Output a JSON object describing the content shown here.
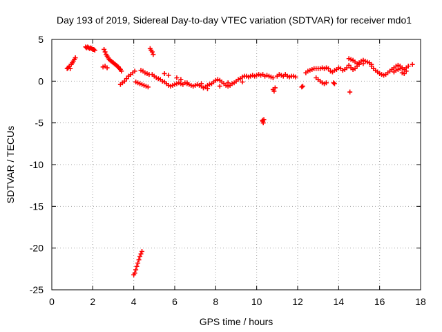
{
  "chart_data": {
    "type": "scatter",
    "title": "Day 193 of 2019, Sidereal Day-to-day VTEC variation (SDTVAR) for receiver mdo1",
    "xlabel": "GPS time / hours",
    "ylabel": "SDTVAR / TECUs",
    "xlim": [
      0,
      18
    ],
    "ylim": [
      -25,
      5
    ],
    "xticks": [
      0,
      2,
      4,
      6,
      8,
      10,
      12,
      14,
      16,
      18
    ],
    "yticks": [
      5,
      0,
      -5,
      -10,
      -15,
      -20,
      -25
    ],
    "grid": true,
    "marker": "+",
    "color": "#ff0000",
    "series": [
      {
        "name": "SDTVAR",
        "points": [
          [
            0.75,
            1.5
          ],
          [
            0.8,
            1.6
          ],
          [
            0.85,
            1.8
          ],
          [
            0.9,
            1.5
          ],
          [
            0.95,
            2.0
          ],
          [
            1.0,
            2.2
          ],
          [
            1.05,
            2.4
          ],
          [
            1.1,
            2.6
          ],
          [
            1.15,
            2.8
          ],
          [
            1.65,
            4.1
          ],
          [
            1.7,
            4.0
          ],
          [
            1.75,
            4.1
          ],
          [
            1.8,
            4.0
          ],
          [
            1.85,
            3.9
          ],
          [
            1.9,
            4.0
          ],
          [
            1.95,
            3.9
          ],
          [
            2.0,
            3.8
          ],
          [
            2.05,
            3.8
          ],
          [
            2.1,
            3.7
          ],
          [
            2.55,
            3.8
          ],
          [
            2.6,
            3.5
          ],
          [
            2.65,
            3.2
          ],
          [
            2.7,
            3.0
          ],
          [
            2.75,
            2.8
          ],
          [
            2.8,
            2.6
          ],
          [
            2.85,
            2.5
          ],
          [
            2.9,
            2.4
          ],
          [
            2.95,
            2.3
          ],
          [
            3.0,
            2.2
          ],
          [
            3.05,
            2.1
          ],
          [
            3.1,
            2.0
          ],
          [
            3.15,
            1.9
          ],
          [
            3.2,
            1.8
          ],
          [
            3.25,
            1.7
          ],
          [
            3.3,
            1.5
          ],
          [
            3.35,
            1.4
          ],
          [
            3.4,
            1.2
          ],
          [
            2.5,
            1.7
          ],
          [
            2.6,
            1.8
          ],
          [
            2.7,
            1.6
          ],
          [
            3.35,
            -0.4
          ],
          [
            3.45,
            -0.2
          ],
          [
            3.55,
            0.0
          ],
          [
            3.65,
            0.3
          ],
          [
            3.75,
            0.6
          ],
          [
            3.85,
            0.8
          ],
          [
            3.95,
            1.0
          ],
          [
            4.05,
            1.2
          ],
          [
            4.1,
            -0.1
          ],
          [
            4.2,
            -0.2
          ],
          [
            4.3,
            -0.3
          ],
          [
            4.4,
            -0.4
          ],
          [
            4.5,
            -0.5
          ],
          [
            4.6,
            -0.6
          ],
          [
            4.7,
            -0.7
          ],
          [
            4.35,
            1.3
          ],
          [
            4.45,
            1.2
          ],
          [
            4.55,
            1.0
          ],
          [
            4.65,
            0.9
          ],
          [
            4.75,
            0.8
          ],
          [
            4.8,
            3.9
          ],
          [
            4.85,
            3.7
          ],
          [
            4.9,
            3.5
          ],
          [
            4.95,
            3.2
          ],
          [
            4.0,
            -23.2
          ],
          [
            4.05,
            -23.0
          ],
          [
            4.1,
            -22.6
          ],
          [
            4.15,
            -22.2
          ],
          [
            4.2,
            -21.8
          ],
          [
            4.25,
            -21.4
          ],
          [
            4.3,
            -21.0
          ],
          [
            4.35,
            -20.7
          ],
          [
            4.4,
            -20.4
          ],
          [
            4.9,
            0.8
          ],
          [
            5.0,
            0.6
          ],
          [
            5.1,
            0.4
          ],
          [
            5.2,
            0.3
          ],
          [
            5.3,
            0.2
          ],
          [
            5.4,
            0.0
          ],
          [
            5.5,
            -0.1
          ],
          [
            5.6,
            -0.3
          ],
          [
            5.7,
            -0.5
          ],
          [
            5.8,
            -0.6
          ],
          [
            5.9,
            -0.5
          ],
          [
            6.0,
            -0.4
          ],
          [
            6.1,
            -0.3
          ],
          [
            6.2,
            -0.2
          ],
          [
            6.3,
            -0.3
          ],
          [
            6.4,
            -0.4
          ],
          [
            6.5,
            -0.2
          ],
          [
            6.6,
            -0.3
          ],
          [
            6.7,
            -0.4
          ],
          [
            6.8,
            -0.5
          ],
          [
            6.9,
            -0.6
          ],
          [
            7.0,
            -0.5
          ],
          [
            7.1,
            -0.4
          ],
          [
            7.2,
            -0.5
          ],
          [
            7.3,
            -0.6
          ],
          [
            7.4,
            -0.8
          ],
          [
            7.5,
            -0.7
          ],
          [
            7.6,
            -0.5
          ],
          [
            7.7,
            -0.4
          ],
          [
            7.8,
            -0.3
          ],
          [
            7.9,
            -0.1
          ],
          [
            8.0,
            0.1
          ],
          [
            8.1,
            0.2
          ],
          [
            8.2,
            0.1
          ],
          [
            8.3,
            -0.1
          ],
          [
            8.4,
            -0.3
          ],
          [
            8.5,
            -0.5
          ],
          [
            8.6,
            -0.6
          ],
          [
            8.7,
            -0.5
          ],
          [
            8.8,
            -0.3
          ],
          [
            8.9,
            -0.2
          ],
          [
            9.0,
            0.0
          ],
          [
            9.1,
            0.2
          ],
          [
            9.2,
            0.3
          ],
          [
            9.3,
            0.5
          ],
          [
            9.4,
            0.6
          ],
          [
            9.5,
            0.6
          ],
          [
            9.6,
            0.5
          ],
          [
            9.7,
            0.6
          ],
          [
            9.8,
            0.7
          ],
          [
            9.9,
            0.6
          ],
          [
            10.0,
            0.7
          ],
          [
            10.1,
            0.8
          ],
          [
            10.2,
            0.7
          ],
          [
            10.3,
            0.8
          ],
          [
            10.4,
            0.6
          ],
          [
            10.5,
            0.7
          ],
          [
            10.6,
            0.6
          ],
          [
            10.7,
            0.5
          ],
          [
            10.8,
            0.4
          ],
          [
            5.5,
            0.9
          ],
          [
            5.7,
            0.7
          ],
          [
            6.1,
            0.4
          ],
          [
            6.3,
            0.2
          ],
          [
            6.6,
            -0.2
          ],
          [
            7.3,
            -0.3
          ],
          [
            7.6,
            -0.9
          ],
          [
            8.2,
            -0.6
          ],
          [
            8.6,
            -0.2
          ],
          [
            9.3,
            -0.1
          ],
          [
            10.3,
            -4.8
          ],
          [
            10.35,
            -4.6
          ],
          [
            10.32,
            -5.0
          ],
          [
            10.28,
            -4.7
          ],
          [
            10.8,
            -1.0
          ],
          [
            10.85,
            -1.2
          ],
          [
            10.9,
            -0.8
          ],
          [
            11.0,
            0.6
          ],
          [
            11.1,
            0.8
          ],
          [
            11.2,
            0.7
          ],
          [
            11.3,
            0.6
          ],
          [
            11.4,
            0.8
          ],
          [
            11.5,
            0.6
          ],
          [
            11.6,
            0.5
          ],
          [
            11.7,
            0.6
          ],
          [
            11.8,
            0.6
          ],
          [
            11.9,
            0.5
          ],
          [
            12.2,
            -0.7
          ],
          [
            12.25,
            -0.6
          ],
          [
            12.4,
            1.0
          ],
          [
            12.5,
            1.2
          ],
          [
            12.6,
            1.3
          ],
          [
            12.7,
            1.4
          ],
          [
            12.8,
            1.5
          ],
          [
            12.9,
            1.5
          ],
          [
            13.0,
            1.5
          ],
          [
            13.1,
            1.5
          ],
          [
            13.2,
            1.6
          ],
          [
            13.3,
            1.5
          ],
          [
            13.4,
            1.6
          ],
          [
            13.5,
            1.5
          ],
          [
            12.9,
            0.4
          ],
          [
            13.0,
            0.2
          ],
          [
            13.1,
            0.0
          ],
          [
            13.2,
            -0.2
          ],
          [
            13.3,
            -0.3
          ],
          [
            13.4,
            -0.2
          ],
          [
            13.6,
            1.2
          ],
          [
            13.7,
            1.1
          ],
          [
            13.8,
            1.3
          ],
          [
            13.9,
            1.4
          ],
          [
            14.0,
            1.6
          ],
          [
            14.1,
            1.5
          ],
          [
            14.2,
            1.3
          ],
          [
            14.3,
            1.4
          ],
          [
            14.4,
            1.6
          ],
          [
            14.5,
            1.9
          ],
          [
            13.75,
            -0.2
          ],
          [
            13.8,
            -0.3
          ],
          [
            14.5,
            2.7
          ],
          [
            14.6,
            2.6
          ],
          [
            14.7,
            2.5
          ],
          [
            14.8,
            2.3
          ],
          [
            14.9,
            2.1
          ],
          [
            15.0,
            2.2
          ],
          [
            15.1,
            2.4
          ],
          [
            15.2,
            2.5
          ],
          [
            15.3,
            2.4
          ],
          [
            15.4,
            2.3
          ],
          [
            15.5,
            2.2
          ],
          [
            15.6,
            2.0
          ],
          [
            14.6,
            1.6
          ],
          [
            14.7,
            1.4
          ],
          [
            14.8,
            1.5
          ],
          [
            14.9,
            1.8
          ],
          [
            15.0,
            2.0
          ],
          [
            15.2,
            2.1
          ],
          [
            14.55,
            -1.3
          ],
          [
            15.6,
            1.8
          ],
          [
            15.7,
            1.5
          ],
          [
            15.8,
            1.3
          ],
          [
            15.9,
            1.1
          ],
          [
            16.0,
            0.9
          ],
          [
            16.1,
            0.8
          ],
          [
            16.2,
            0.7
          ],
          [
            16.3,
            0.8
          ],
          [
            16.4,
            1.0
          ],
          [
            16.5,
            1.2
          ],
          [
            16.6,
            1.4
          ],
          [
            16.7,
            1.6
          ],
          [
            16.8,
            1.8
          ],
          [
            16.9,
            1.9
          ],
          [
            17.0,
            1.8
          ],
          [
            17.1,
            1.6
          ],
          [
            17.2,
            1.4
          ],
          [
            17.3,
            1.6
          ],
          [
            17.4,
            1.8
          ],
          [
            17.6,
            2.0
          ],
          [
            16.7,
            1.1
          ],
          [
            16.8,
            1.3
          ],
          [
            16.9,
            1.4
          ],
          [
            17.0,
            1.5
          ],
          [
            17.1,
            1.0
          ],
          [
            17.2,
            0.9
          ],
          [
            17.3,
            1.2
          ]
        ]
      }
    ]
  }
}
